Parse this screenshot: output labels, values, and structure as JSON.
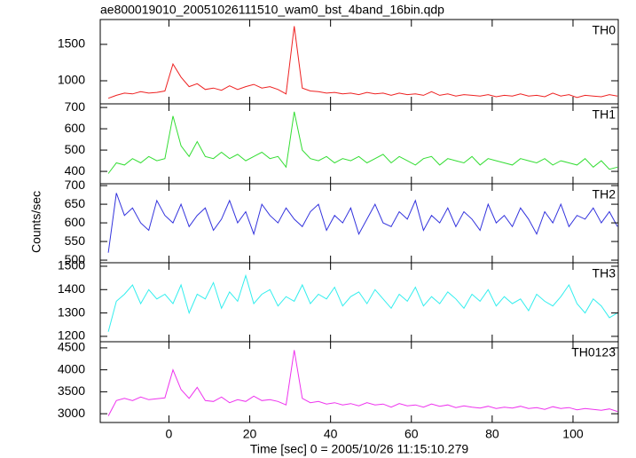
{
  "chart_data": {
    "type": "line",
    "title": "ae800019010_20051026111510_wam0_bst_4band_16bin.qdp",
    "xlabel": "Time [sec] 0 = 2005/10/26 11:15:10.279",
    "ylabel": "Counts/sec",
    "xlim": [
      -17,
      111.2
    ],
    "xticks": [
      0,
      20,
      40,
      60,
      80,
      100
    ],
    "x": [
      -15,
      -13,
      -11,
      -9,
      -7,
      -5,
      -3,
      -1,
      1,
      3,
      5,
      7,
      9,
      11,
      13,
      15,
      17,
      19,
      21,
      23,
      25,
      27,
      29,
      31,
      33,
      35,
      37,
      39,
      41,
      43,
      45,
      47,
      49,
      51,
      53,
      55,
      57,
      59,
      61,
      63,
      65,
      67,
      69,
      71,
      73,
      75,
      77,
      79,
      81,
      83,
      85,
      87,
      89,
      91,
      93,
      95,
      97,
      99,
      101,
      103,
      105,
      107,
      109,
      111
    ],
    "panels": [
      {
        "name": "TH0",
        "color": "#ee2222",
        "ylim": [
          683,
          1841
        ],
        "yticks": [
          1000,
          1500
        ],
        "values": [
          760,
          800,
          830,
          820,
          850,
          830,
          840,
          860,
          1230,
          1050,
          920,
          960,
          880,
          900,
          870,
          930,
          880,
          920,
          950,
          900,
          920,
          880,
          820,
          1750,
          900,
          860,
          850,
          830,
          840,
          820,
          830,
          810,
          840,
          820,
          830,
          800,
          830,
          810,
          820,
          800,
          850,
          800,
          820,
          790,
          810,
          800,
          790,
          810,
          780,
          800,
          790,
          820,
          790,
          800,
          780,
          830,
          790,
          810,
          770,
          800,
          790,
          780,
          810,
          790
        ]
      },
      {
        "name": "TH1",
        "color": "#33dd33",
        "ylim": [
          342,
          717
        ],
        "yticks": [
          400,
          500,
          600,
          700
        ],
        "values": [
          390,
          440,
          430,
          460,
          440,
          470,
          450,
          460,
          660,
          520,
          470,
          540,
          470,
          460,
          490,
          460,
          480,
          450,
          470,
          490,
          460,
          470,
          420,
          680,
          500,
          460,
          450,
          470,
          440,
          460,
          450,
          470,
          440,
          460,
          480,
          440,
          470,
          450,
          430,
          460,
          470,
          430,
          460,
          450,
          440,
          470,
          430,
          460,
          450,
          440,
          430,
          460,
          450,
          440,
          460,
          430,
          450,
          440,
          430,
          460,
          420,
          450,
          410,
          420
        ]
      },
      {
        "name": "TH2",
        "color": "#3333dd",
        "ylim": [
          493,
          705
        ],
        "yticks": [
          500,
          550,
          600,
          650,
          700
        ],
        "values": [
          520,
          680,
          620,
          640,
          600,
          580,
          660,
          620,
          600,
          650,
          590,
          620,
          640,
          580,
          610,
          660,
          600,
          630,
          570,
          650,
          620,
          600,
          640,
          610,
          590,
          630,
          650,
          580,
          620,
          600,
          640,
          570,
          610,
          650,
          600,
          590,
          630,
          610,
          660,
          580,
          620,
          600,
          640,
          590,
          630,
          610,
          580,
          650,
          600,
          620,
          590,
          640,
          610,
          570,
          630,
          600,
          650,
          590,
          620,
          610,
          640,
          600,
          630,
          590
        ]
      },
      {
        "name": "TH3",
        "color": "#33eeee",
        "ylim": [
          1177,
          1515
        ],
        "yticks": [
          1200,
          1300,
          1400,
          1500
        ],
        "values": [
          1220,
          1350,
          1380,
          1420,
          1340,
          1400,
          1360,
          1380,
          1340,
          1420,
          1300,
          1380,
          1360,
          1430,
          1320,
          1390,
          1350,
          1460,
          1340,
          1380,
          1400,
          1330,
          1370,
          1350,
          1420,
          1340,
          1380,
          1360,
          1410,
          1330,
          1370,
          1390,
          1340,
          1400,
          1360,
          1320,
          1380,
          1350,
          1410,
          1330,
          1370,
          1340,
          1390,
          1360,
          1320,
          1380,
          1350,
          1400,
          1330,
          1370,
          1340,
          1360,
          1310,
          1380,
          1350,
          1330,
          1370,
          1420,
          1340,
          1300,
          1360,
          1330,
          1280,
          1300
        ]
      },
      {
        "name": "TH0123",
        "color": "#ee33ee",
        "ylim": [
          2800,
          4640
        ],
        "yticks": [
          3000,
          3500,
          4000,
          4500
        ],
        "values": [
          2950,
          3300,
          3350,
          3300,
          3380,
          3320,
          3340,
          3360,
          4000,
          3550,
          3350,
          3600,
          3300,
          3280,
          3380,
          3250,
          3320,
          3280,
          3400,
          3300,
          3320,
          3280,
          3200,
          4450,
          3350,
          3250,
          3280,
          3220,
          3250,
          3200,
          3230,
          3180,
          3250,
          3200,
          3220,
          3150,
          3230,
          3180,
          3200,
          3150,
          3220,
          3170,
          3200,
          3140,
          3180,
          3150,
          3130,
          3170,
          3120,
          3150,
          3130,
          3170,
          3120,
          3140,
          3100,
          3160,
          3120,
          3140,
          3090,
          3120,
          3100,
          3080,
          3110,
          3050
        ]
      }
    ]
  }
}
